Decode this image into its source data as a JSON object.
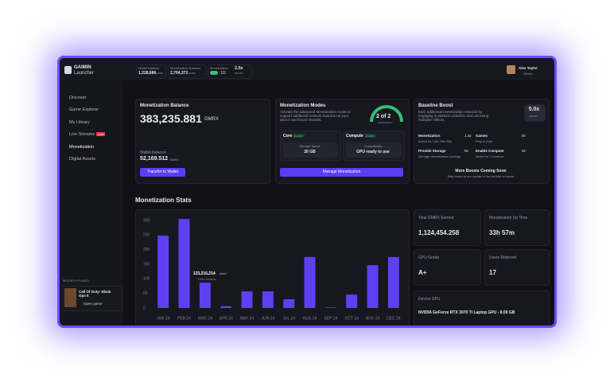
{
  "topbar": {
    "app_name": "GAIMIN",
    "app_subtitle": "Launcher",
    "wallet": {
      "label": "Wallet Balance",
      "value": "1,228,686",
      "unit": "GMRX"
    },
    "monetization_balance": {
      "label": "Monetization Balance",
      "value": "2,704,372",
      "unit": "GMRX"
    },
    "monetization": {
      "label": "Monetization",
      "state": "1/2"
    },
    "boost": {
      "value": "2.5x",
      "label": "BOOST"
    },
    "user": {
      "name": "Alex Taylor",
      "status": "Online"
    }
  },
  "sidebar": {
    "nav": [
      "Discover",
      "Game Explorer",
      "My Library",
      "Live Streams",
      "Monetization",
      "Digital Assets"
    ],
    "live_badge": "Live",
    "recently_played": {
      "label": "RECENTLY PLAYED",
      "game": "Call Of Duty: Black Ops 6",
      "action": "Open game"
    }
  },
  "balance_card": {
    "title": "Monetization Balance",
    "amount": "383,235.881",
    "unit": "GMRX",
    "wallet_label": "Wallet balance",
    "wallet_amount": "52,169.512",
    "wallet_unit": "GMRX",
    "button": "Transfer to Wallet"
  },
  "modes_card": {
    "title": "Monetization Modes",
    "description": "Activate the advanced Monetization mode to support additional network features on your device and boost rewards.",
    "gauge": {
      "value": "2 of 2",
      "label": "EFFICIENCY"
    },
    "modes": [
      {
        "name": "Core",
        "status": "Active",
        "detail_label": "Storage Space",
        "detail_value": "20 GB"
      },
      {
        "name": "Compute",
        "status": "Active",
        "detail_label": "Compatibility",
        "detail_value": "GPU ready to use"
      }
    ],
    "button": "Manage Monetization"
  },
  "boost_card": {
    "title": "Baseline Boost",
    "description": "Earn additional monetization rewards by engaging in platform activities and unlocking multiplier effects.",
    "multiplier": "5.0x",
    "multiplier_label": "BOOST",
    "items": [
      {
        "name": "Monetization",
        "value": "1.4x",
        "detail": "Active for: 13h 29m 55s"
      },
      {
        "name": "Games",
        "value": "0x",
        "detail": "Play to earn"
      },
      {
        "name": "Provide Storage",
        "value": "0x",
        "detail": "Manage monetization settings"
      },
      {
        "name": "Enable Compute",
        "value": "0x",
        "detail": "Active for: Constant"
      }
    ],
    "coming_soon": "More Boosts Coming Soon",
    "coming_soon_note": "Stay tuned to our socials to be the first to know!"
  },
  "stats_title": "Monetization Stats",
  "chart_data": {
    "type": "bar",
    "categories": [
      "JAN 24",
      "FEB 24",
      "MAR 24",
      "APR 24",
      "MAY 24",
      "JUN 24",
      "JUL 24",
      "AUG 24",
      "SEP 24",
      "OCT 24",
      "NOV 24",
      "DEC 24"
    ],
    "values": [
      248,
      305,
      87,
      6,
      57,
      57,
      30,
      175,
      2,
      46,
      147,
      175
    ],
    "color": "#5e40f2",
    "ylim": [
      0,
      300
    ],
    "yticks": [
      0,
      50,
      100,
      150,
      200,
      250,
      300
    ],
    "grid": false,
    "tooltip": {
      "value": "123,216,214",
      "unit": "GMRX",
      "label": "Total rewards"
    }
  },
  "stat_cards": [
    {
      "label": "Total GMRX Earned",
      "value": "1,124,454.258"
    },
    {
      "label": "Monetization Up Time",
      "value": "33h 57m"
    },
    {
      "label": "GPU Grade",
      "value": "A+"
    },
    {
      "label": "Users Referred",
      "value": "17"
    }
  ],
  "device": {
    "label": "Device GPU",
    "value": "NVIDIA GeForce RTX 3070 Ti Laptop GPU - 8.00 GB"
  }
}
